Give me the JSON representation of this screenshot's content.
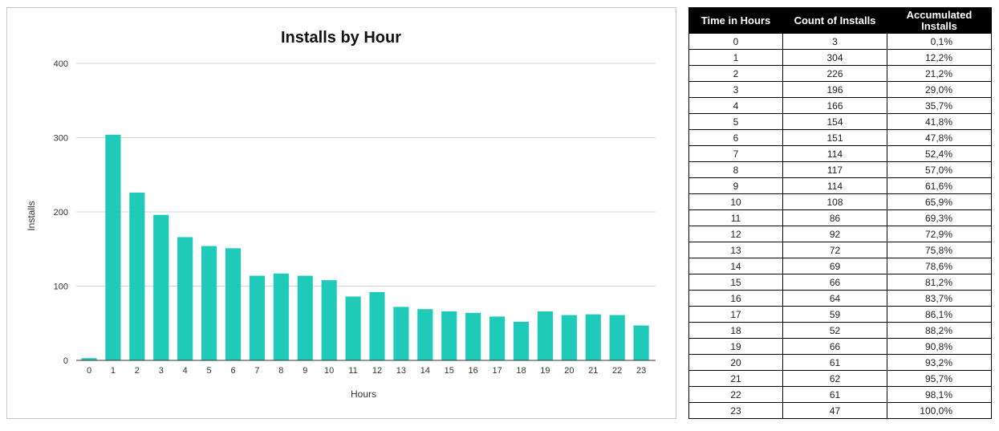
{
  "chart_data": {
    "type": "bar",
    "title": "Installs by Hour",
    "xlabel": "Hours",
    "ylabel": "Installs",
    "ylim": [
      0,
      400
    ],
    "yticks": [
      0,
      100,
      200,
      300,
      400
    ],
    "grid": true,
    "bar_color": "#1fcab8",
    "categories": [
      "0",
      "1",
      "2",
      "3",
      "4",
      "5",
      "6",
      "7",
      "8",
      "9",
      "10",
      "11",
      "12",
      "13",
      "14",
      "15",
      "16",
      "17",
      "18",
      "19",
      "20",
      "21",
      "22",
      "23"
    ],
    "values": [
      3,
      304,
      226,
      196,
      166,
      154,
      151,
      114,
      117,
      114,
      108,
      86,
      92,
      72,
      69,
      66,
      64,
      59,
      52,
      66,
      61,
      62,
      61,
      47
    ]
  },
  "table": {
    "headers": [
      "Time in Hours",
      "Count of Installs",
      "Accumulated Installs"
    ],
    "rows": [
      [
        "0",
        "3",
        "0,1%"
      ],
      [
        "1",
        "304",
        "12,2%"
      ],
      [
        "2",
        "226",
        "21,2%"
      ],
      [
        "3",
        "196",
        "29,0%"
      ],
      [
        "4",
        "166",
        "35,7%"
      ],
      [
        "5",
        "154",
        "41,8%"
      ],
      [
        "6",
        "151",
        "47,8%"
      ],
      [
        "7",
        "114",
        "52,4%"
      ],
      [
        "8",
        "117",
        "57,0%"
      ],
      [
        "9",
        "114",
        "61,6%"
      ],
      [
        "10",
        "108",
        "65,9%"
      ],
      [
        "11",
        "86",
        "69,3%"
      ],
      [
        "12",
        "92",
        "72,9%"
      ],
      [
        "13",
        "72",
        "75,8%"
      ],
      [
        "14",
        "69",
        "78,6%"
      ],
      [
        "15",
        "66",
        "81,2%"
      ],
      [
        "16",
        "64",
        "83,7%"
      ],
      [
        "17",
        "59",
        "86,1%"
      ],
      [
        "18",
        "52",
        "88,2%"
      ],
      [
        "19",
        "66",
        "90,8%"
      ],
      [
        "20",
        "61",
        "93,2%"
      ],
      [
        "21",
        "62",
        "95,7%"
      ],
      [
        "22",
        "61",
        "98,1%"
      ],
      [
        "23",
        "47",
        "100,0%"
      ]
    ]
  }
}
